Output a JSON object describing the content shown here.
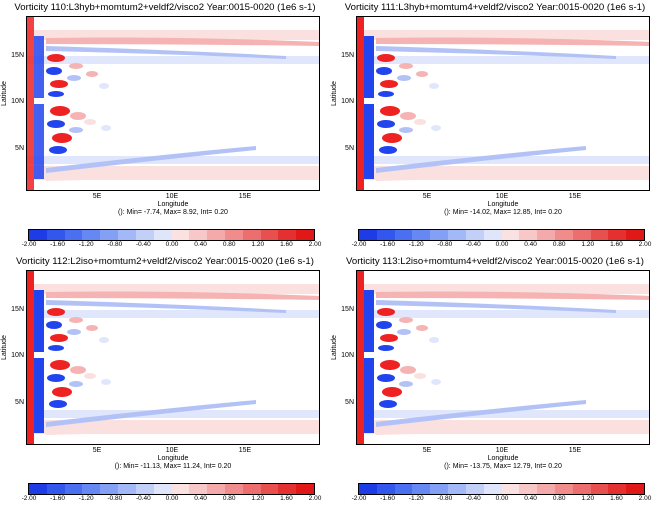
{
  "xlabel": "Longitude",
  "ylabel": "Latitude",
  "x_ticks": [
    "5E",
    "10E",
    "15E"
  ],
  "y_ticks": [
    "5N",
    "10N",
    "15N"
  ],
  "colorbar": {
    "labels": [
      "-2.00",
      "-1.60",
      "-1.20",
      "-0.80",
      "-0.40",
      "0.00",
      "0.40",
      "0.80",
      "1.20",
      "1.60",
      "2.00"
    ],
    "colors": [
      "#1e3ce6",
      "#3356ec",
      "#4a6ff0",
      "#6688f2",
      "#84a0f4",
      "#a3b8f6",
      "#c2d0f8",
      "#dfe6fb",
      "#fbe2e2",
      "#f8c8c8",
      "#f4aaaa",
      "#f08c8c",
      "#ec6e6e",
      "#e84f4f",
      "#e43030",
      "#e01818"
    ]
  },
  "panels": [
    {
      "title": "Vorticity 110:L3hyb+momtum2+veldf2/visco2 Year:0015-0020 (1e6 s-1)",
      "stats": "(): Min= -7.74, Max= 8.92, Int= 0.20"
    },
    {
      "title": "Vorticity 111:L3hyb+momtum4+veldf2/visco2 Year:0015-0020 (1e6 s-1)",
      "stats": "(): Min= -14.02, Max= 12.85, Int= 0.20"
    },
    {
      "title": "Vorticity 112:L2iso+momtum2+veldf2/visco2 Year:0015-0020 (1e6 s-1)",
      "stats": "(): Min= -11.13, Max= 11.24, Int= 0.20"
    },
    {
      "title": "Vorticity 113:L2iso+momtum4+veldf2/visco2 Year:0015-0020 (1e6 s-1)",
      "stats": "(): Min= -13.75, Max= 12.79, Int= 0.20"
    }
  ],
  "chart_data": {
    "type": "heatmap",
    "xlim": [
      0,
      20
    ],
    "ylim": [
      0,
      20
    ],
    "colorbar_range": [
      -2.0,
      2.0
    ],
    "contour_interval": 0.2,
    "units": "1e6 s-1"
  }
}
